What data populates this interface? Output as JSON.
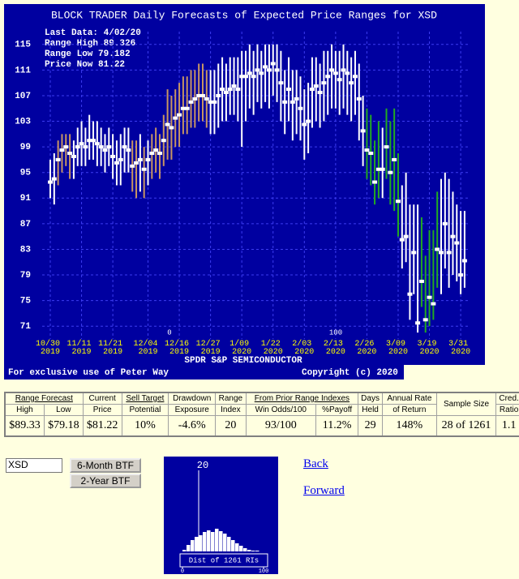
{
  "chart_data": [
    {
      "type": "range",
      "title": "BLOCK TRADER Daily Forecasts of Expected Price Ranges for  XSD",
      "info": [
        "Last Data: 4/02/20",
        "Range High 89.326",
        "Range Low  79.182",
        "Price Now  81.22"
      ],
      "subtitle": "SPDR S&P SEMICONDUCTOR",
      "footer_left": "For exclusive use of Peter Way",
      "footer_right": "Copyright (c) 2020",
      "range_index_labels": [
        0,
        100
      ],
      "categories": [
        "10/30 2019",
        null,
        null,
        null,
        null,
        null,
        null,
        null,
        "11/11 2019",
        null,
        null,
        null,
        null,
        null,
        null,
        null,
        "11/21 2019",
        null,
        null,
        null,
        null,
        null,
        null,
        null,
        null,
        "12/04 2019",
        null,
        null,
        null,
        null,
        null,
        null,
        null,
        "12/16 2019",
        null,
        null,
        null,
        null,
        null,
        null,
        null,
        "12/27 2019",
        null,
        null,
        null,
        null,
        null,
        null,
        null,
        "1/09 2020",
        null,
        null,
        null,
        null,
        null,
        null,
        null,
        "1/22 2020",
        null,
        null,
        null,
        null,
        null,
        null,
        null,
        "2/03 2020",
        null,
        null,
        null,
        null,
        null,
        null,
        null,
        "2/13 2020",
        null,
        null,
        null,
        null,
        null,
        null,
        null,
        "2/26 2020",
        null,
        null,
        null,
        null,
        null,
        null,
        null,
        "3/09 2020",
        null,
        null,
        null,
        null,
        null,
        null,
        null,
        "3/19 2020",
        null,
        null,
        null,
        null,
        null,
        null,
        null,
        "3/31 2020",
        null
      ],
      "high": [
        97,
        98,
        100,
        101,
        101,
        101,
        100,
        102,
        103,
        102,
        104,
        103,
        103,
        102,
        101,
        102,
        101,
        100,
        101,
        102,
        102,
        100,
        100,
        101,
        99,
        100,
        101,
        102,
        101,
        104,
        108,
        107,
        108,
        109,
        110,
        110,
        111,
        111,
        112,
        112,
        111,
        111,
        111,
        112,
        113,
        112,
        113,
        113,
        113,
        114,
        114,
        115,
        114,
        115,
        114,
        115,
        115,
        115,
        115,
        114,
        111,
        113,
        111,
        111,
        110,
        108,
        109,
        113,
        113,
        112,
        114,
        114,
        115,
        114,
        114,
        115,
        114,
        113,
        114,
        112,
        107,
        105,
        104,
        100,
        103,
        102,
        105,
        103,
        105,
        98,
        93,
        95,
        90,
        90,
        90,
        88,
        82,
        86,
        86,
        92,
        94,
        95,
        94,
        92,
        90,
        89,
        89
      ],
      "low": [
        91,
        90,
        93,
        95,
        96,
        94,
        94,
        96,
        96,
        96,
        97,
        97,
        96,
        96,
        95,
        96,
        94,
        93,
        93,
        95,
        95,
        92,
        91,
        92,
        91,
        93,
        94,
        95,
        94,
        96,
        97,
        97,
        99,
        99,
        101,
        101,
        102,
        102,
        103,
        103,
        102,
        101,
        101,
        102,
        103,
        103,
        104,
        104,
        103,
        99,
        103,
        105,
        104,
        106,
        105,
        106,
        105,
        107,
        106,
        103,
        101,
        103,
        100,
        101,
        100,
        97,
        98,
        102,
        103,
        102,
        103,
        104,
        105,
        105,
        104,
        105,
        104,
        103,
        104,
        100,
        96,
        94,
        93,
        90,
        91,
        91,
        94,
        90,
        89,
        85,
        80,
        81,
        72,
        76,
        70,
        74,
        70,
        71,
        72,
        77,
        76,
        80,
        77,
        79,
        78,
        76,
        77
      ],
      "values": [
        93.5,
        94,
        97,
        98.5,
        99,
        98,
        97.5,
        99,
        99.5,
        99,
        100,
        100,
        99.5,
        99,
        98.5,
        99,
        97.5,
        96.5,
        97,
        99,
        98.5,
        96,
        96.5,
        97,
        95.5,
        97,
        98,
        98.5,
        98,
        100,
        102.5,
        102,
        103.5,
        104,
        105,
        105,
        106,
        106.5,
        107,
        107,
        106.5,
        106,
        106,
        107,
        108,
        107.5,
        108,
        108.5,
        108,
        110,
        110,
        110.5,
        110,
        111,
        110.5,
        111.5,
        111,
        112,
        111,
        109,
        106,
        108,
        106,
        106.5,
        105,
        102.5,
        103,
        108,
        108.5,
        107.5,
        109,
        110,
        111,
        110.5,
        109.5,
        111,
        110.5,
        109,
        110,
        106.5,
        101.5,
        98.5,
        98,
        93.5,
        95.5,
        95.5,
        99,
        95,
        97,
        90.5,
        84.5,
        85,
        76,
        82.5,
        71.5,
        78,
        72,
        75.5,
        74.5,
        83,
        82.5,
        87,
        82.5,
        85,
        84,
        79,
        81.22
      ],
      "bar_colors": [
        "#ffffff",
        "#ffffff",
        "#c89664",
        "#c89664",
        "#c89664",
        "#c89664",
        "#ffffff",
        "#ffffff",
        "#ffffff",
        "#ffffff",
        "#ffffff",
        "#ffffff",
        "#ffffff",
        "#ffffff",
        "#ffffff",
        "#ffffff",
        "#ffffff",
        "#ffffff",
        "#ffffff",
        "#ffffff",
        "#ffffff",
        "#c89664",
        "#c89664",
        "#ffffff",
        "#c89664",
        "#ffffff",
        "#c89664",
        "#c89664",
        "#c89664",
        "#c89664",
        "#c89664",
        "#c89664",
        "#c89664",
        "#c89664",
        "#c89664",
        "#c89664",
        "#c89664",
        "#c89664",
        "#c89664",
        "#c89664",
        "#c89664",
        "#ffffff",
        "#ffffff",
        "#ffffff",
        "#ffffff",
        "#ffffff",
        "#ffffff",
        "#ffffff",
        "#ffffff",
        "#ffffff",
        "#ffffff",
        "#ffffff",
        "#ffffff",
        "#ffffff",
        "#ffffff",
        "#ffffff",
        "#ffffff",
        "#ffffff",
        "#ffffff",
        "#ffffff",
        "#ffffff",
        "#ffffff",
        "#ffffff",
        "#ffffff",
        "#ffffff",
        "#ffffff",
        "#ffffff",
        "#ffffff",
        "#ffffff",
        "#ffffff",
        "#ffffff",
        "#ffffff",
        "#ffffff",
        "#ffffff",
        "#ffffff",
        "#ffffff",
        "#ffffff",
        "#ffffff",
        "#ffffff",
        "#ffffff",
        "#ffffff",
        "#22aa22",
        "#22aa22",
        "#22aa22",
        "#22aa22",
        "#ffffff",
        "#22aa22",
        "#22aa22",
        "#22aa22",
        "#22aa22",
        "#ffffff",
        "#ffffff",
        "#ffffff",
        "#ffffff",
        "#ffffff",
        "#22aa22",
        "#22aa22",
        "#22aa22",
        "#22aa22",
        "#22aa22",
        "#ffffff",
        "#ffffff",
        "#ffffff",
        "#ffffff",
        "#ffffff",
        "#ffffff",
        "#ffffff"
      ],
      "price_color": "#ffffff",
      "ylim": [
        69,
        117
      ],
      "yticks": [
        71,
        75,
        79,
        83,
        87,
        91,
        95,
        99,
        103,
        107,
        111,
        115
      ],
      "grid": true
    },
    {
      "type": "histogram",
      "title": "Dist of 1261 RIs",
      "marker_value": 20,
      "bins": [
        0,
        5,
        10,
        15,
        20,
        25,
        30,
        35,
        40,
        45,
        50,
        55,
        60,
        65,
        70,
        75,
        80,
        85,
        90,
        95,
        100
      ],
      "counts": [
        2,
        8,
        14,
        18,
        20,
        24,
        26,
        24,
        28,
        25,
        22,
        18,
        14,
        10,
        7,
        4,
        2,
        1,
        1,
        0
      ],
      "color": "#ffffff",
      "xlim": [
        0,
        100
      ],
      "xticks": [
        0,
        100
      ]
    }
  ],
  "table": {
    "header_top": [
      "Range Forecast",
      "Current",
      "Sell Target",
      "Drawdown",
      "Range",
      "From Prior Range Indexes",
      "Days",
      "Annual Rate",
      "Sample Size",
      "Cred."
    ],
    "header_bottom": [
      "High",
      "Low",
      "Price",
      "Potential",
      "Exposure",
      "Index",
      "Win Odds/100",
      "%Payoff",
      "Held",
      "of Return",
      "Ratio"
    ],
    "row": [
      "$89.33",
      "$79.18",
      "$81.22",
      "10%",
      "-4.6%",
      "20",
      "93/100",
      "11.2%",
      "29",
      "148%",
      "28 of 1261",
      "1.1"
    ]
  },
  "controls": {
    "ticker": "XSD",
    "buttons": [
      "6-Month BTF",
      "2-Year BTF"
    ]
  },
  "links": [
    "Back",
    "Forward"
  ]
}
